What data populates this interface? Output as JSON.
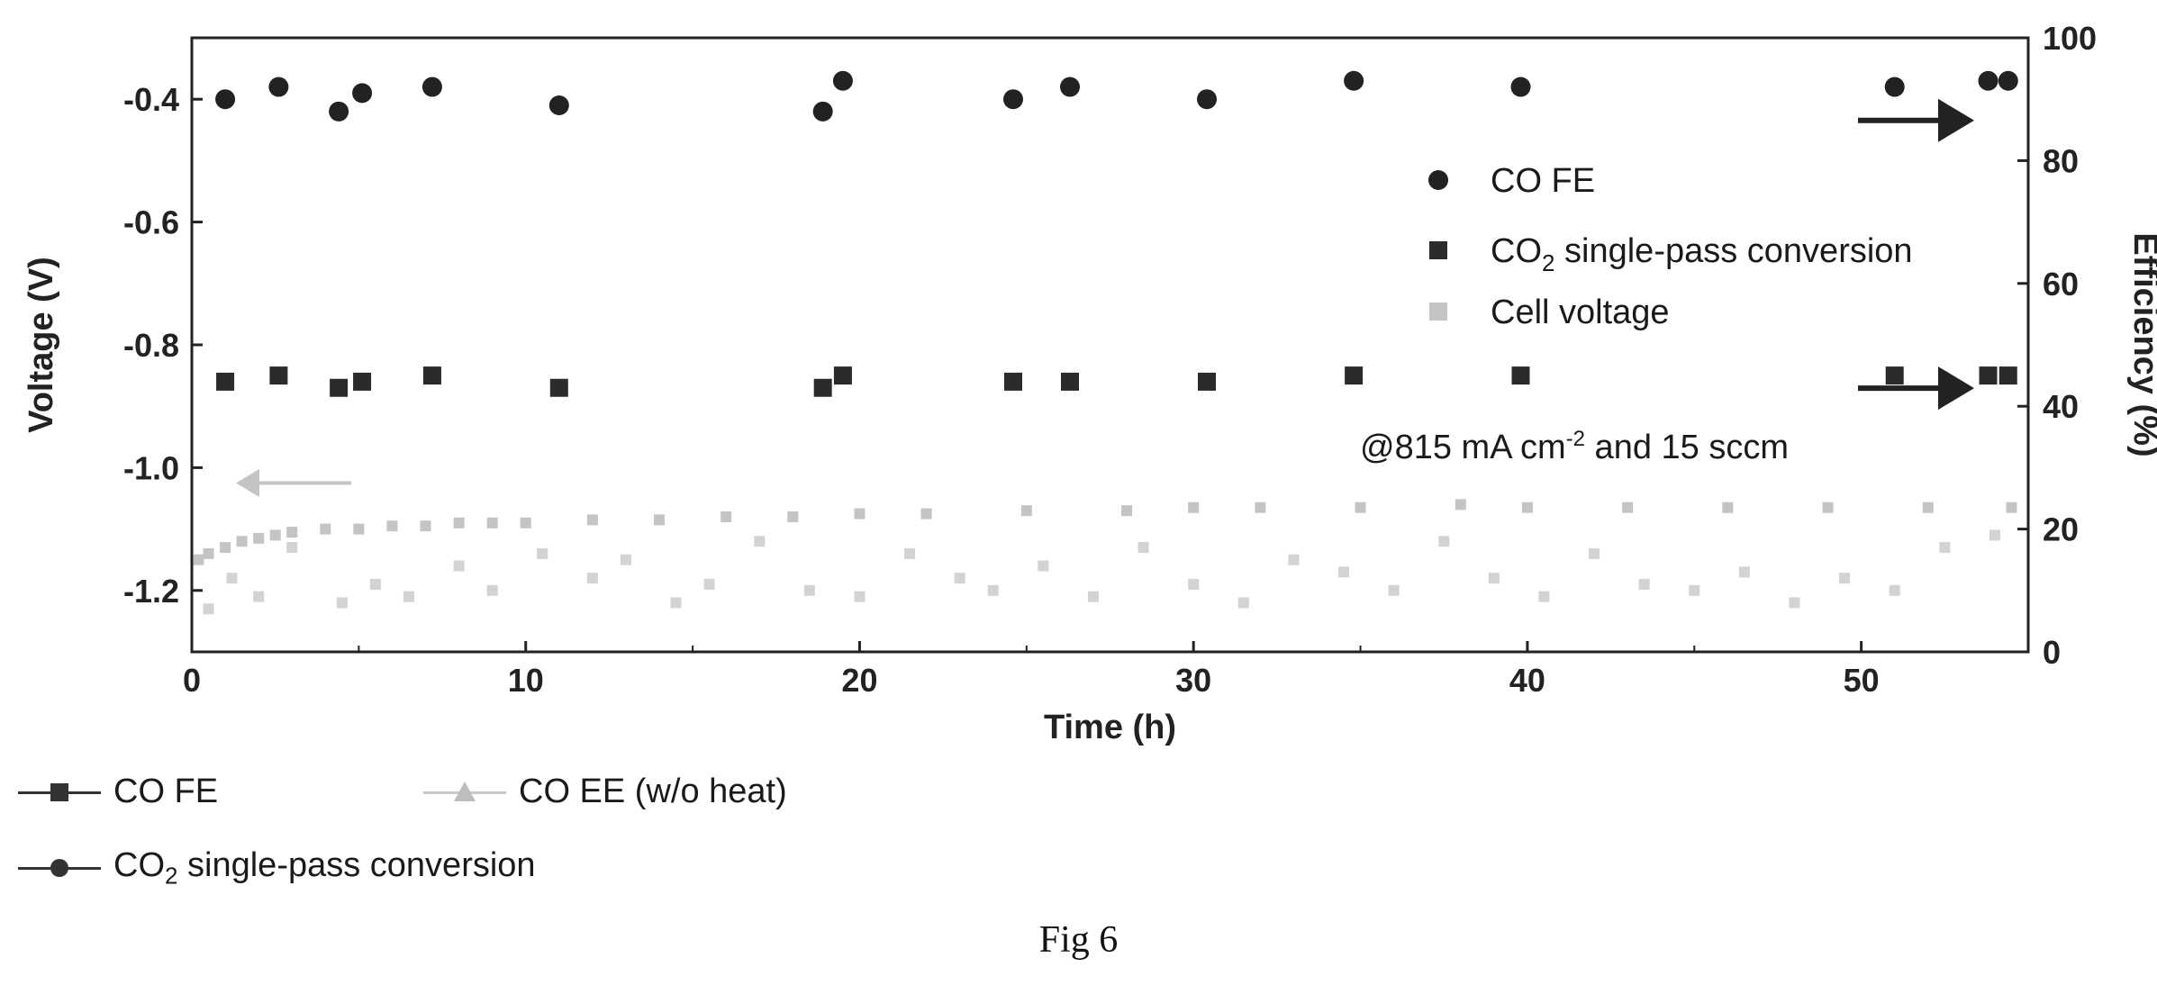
{
  "figure_caption": "Fig 6",
  "chart_data": {
    "type": "scatter",
    "xlabel": "Time (h)",
    "ylabel_left": "Voltage (V)",
    "ylabel_right": "Efficiency (%)",
    "xlim": [
      0,
      55
    ],
    "ylim_left": [
      -1.3,
      -0.3
    ],
    "ylim_right": [
      0,
      100
    ],
    "x_ticks": [
      "0",
      "10",
      "20",
      "30",
      "40",
      "50"
    ],
    "y_left_ticks": [
      "-0.4",
      "-0.6",
      "-0.8",
      "-1.0",
      "-1.2"
    ],
    "y_right_ticks": [
      "0",
      "20",
      "40",
      "60",
      "80",
      "100"
    ],
    "grid": false,
    "legend_position": "right",
    "annotation": "@815 mA cm",
    "annotation_sup": "-2",
    "annotation_tail": " and 15 sccm",
    "legend": [
      {
        "label": "CO FE",
        "marker": "circle",
        "color": "#222222"
      },
      {
        "label_main": "CO",
        "label_sub": "2",
        "label_tail": " single-pass conversion",
        "marker": "square",
        "color": "#2b2b2b"
      },
      {
        "label": "Cell voltage",
        "marker": "square",
        "color": "#c4c4c4"
      }
    ],
    "series": [
      {
        "name": "CO FE",
        "axis": "right",
        "marker": "circle",
        "color": "#222222",
        "x": [
          1.0,
          2.6,
          4.4,
          5.1,
          7.2,
          11.0,
          18.9,
          19.5,
          24.6,
          26.3,
          30.4,
          34.8,
          39.8,
          51.0,
          53.8,
          54.4
        ],
        "y": [
          90,
          92,
          88,
          91,
          92,
          89,
          88,
          93,
          90,
          92,
          90,
          93,
          92,
          92,
          93,
          93
        ]
      },
      {
        "name": "CO2 single-pass conversion",
        "axis": "right",
        "marker": "square",
        "color": "#2b2b2b",
        "x": [
          1.0,
          2.6,
          4.4,
          5.1,
          7.2,
          11.0,
          18.9,
          19.5,
          24.6,
          26.3,
          30.4,
          34.8,
          39.8,
          51.0,
          53.8,
          54.4
        ],
        "y": [
          44,
          45,
          43,
          44,
          45,
          43,
          43,
          45,
          44,
          44,
          44,
          45,
          45,
          45,
          45,
          45
        ]
      },
      {
        "name": "Cell voltage",
        "axis": "left",
        "marker": "square",
        "color": "#c4c4c4",
        "x": [
          0.2,
          0.5,
          1.0,
          1.5,
          2.0,
          2.5,
          3.0,
          4.0,
          5.0,
          6.0,
          7.0,
          8.0,
          9.0,
          10.0,
          12.0,
          14.0,
          16.0,
          18.0,
          20.0,
          22.0,
          25.0,
          28.0,
          30.0,
          32.0,
          35.0,
          38.0,
          40.0,
          43.0,
          46.0,
          49.0,
          52.0,
          54.5
        ],
        "y": [
          -1.15,
          -1.14,
          -1.13,
          -1.12,
          -1.115,
          -1.11,
          -1.105,
          -1.1,
          -1.1,
          -1.095,
          -1.095,
          -1.09,
          -1.09,
          -1.09,
          -1.085,
          -1.085,
          -1.08,
          -1.08,
          -1.075,
          -1.075,
          -1.07,
          -1.07,
          -1.065,
          -1.065,
          -1.065,
          -1.06,
          -1.065,
          -1.065,
          -1.065,
          -1.065,
          -1.065,
          -1.065
        ]
      },
      {
        "name": "CO EE (w/o heat)",
        "axis": "right",
        "marker": "square",
        "color": "#d3d3d3",
        "x": [
          0.5,
          1.2,
          2.0,
          3.0,
          4.5,
          5.5,
          6.5,
          8.0,
          9.0,
          10.5,
          12.0,
          13.0,
          14.5,
          15.5,
          17.0,
          18.5,
          20.0,
          21.5,
          23.0,
          24.0,
          25.5,
          27.0,
          28.5,
          30.0,
          31.5,
          33.0,
          34.5,
          36.0,
          37.5,
          39.0,
          40.5,
          42.0,
          43.5,
          45.0,
          46.5,
          48.0,
          49.5,
          51.0,
          52.5,
          54.0
        ],
        "y": [
          7,
          12,
          9,
          17,
          8,
          11,
          9,
          14,
          10,
          16,
          12,
          15,
          8,
          11,
          18,
          10,
          9,
          16,
          12,
          10,
          14,
          9,
          17,
          11,
          8,
          15,
          13,
          10,
          18,
          12,
          9,
          16,
          11,
          10,
          13,
          8,
          12,
          10,
          17,
          19
        ]
      }
    ],
    "bottom_legend": [
      {
        "label": "CO FE",
        "marker": "square",
        "line": "dark"
      },
      {
        "label": "CO EE (w/o heat)",
        "marker": "triangle",
        "line": "light"
      },
      {
        "label_main": "CO",
        "label_sub": "2",
        "label_tail": " single-pass conversion",
        "marker": "circle",
        "line": "dark"
      }
    ]
  }
}
